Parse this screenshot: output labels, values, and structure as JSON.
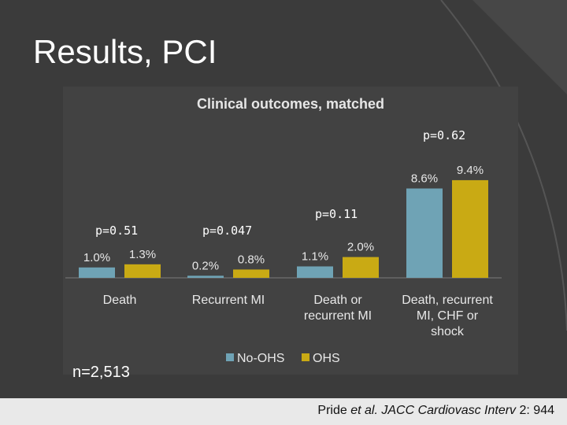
{
  "slide": {
    "title": "Results, PCI",
    "n_label": "n=2,513",
    "citation": {
      "author": "Pride ",
      "etal": "et al. JACC Cardiovasc Interv",
      "volume": " 2:",
      "page": " 944"
    }
  },
  "chart_data": {
    "type": "bar",
    "title": "Clinical outcomes, matched",
    "categories": [
      "Death",
      "Recurrent MI",
      "Death or recurrent MI",
      "Death, recurrent MI, CHF or shock"
    ],
    "category_label_lines": [
      [
        "Death"
      ],
      [
        "Recurrent MI"
      ],
      [
        "Death or",
        "recurrent MI"
      ],
      [
        "Death, recurrent",
        "MI, CHF or",
        "shock"
      ]
    ],
    "series": [
      {
        "name": "No-OHS",
        "color": "#6fa3b5",
        "values": [
          1.0,
          0.2,
          1.1,
          8.6
        ],
        "labels": [
          "1.0%",
          "0.2%",
          "1.1%",
          "8.6%"
        ]
      },
      {
        "name": "OHS",
        "color": "#c9aa14",
        "values": [
          1.3,
          0.8,
          2.0,
          9.4
        ],
        "labels": [
          "1.3%",
          "0.8%",
          "2.0%",
          "9.4%"
        ]
      }
    ],
    "p_values": [
      "p=0.51",
      "p=0.047",
      "p=0.11",
      "p=0.62"
    ],
    "ylim": [
      0,
      10
    ],
    "grid": false,
    "legend": "bottom"
  }
}
